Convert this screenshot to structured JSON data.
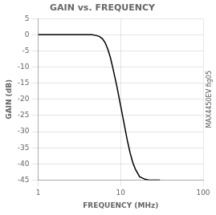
{
  "chart_data": {
    "type": "line",
    "title": "GAIN vs. FREQUENCY",
    "xlabel": "FREQUENCY (MHz)",
    "ylabel": "GAIN (dB)",
    "annotation": "MAX4450EV fig05",
    "x": [
      1,
      1.5,
      2,
      2.5,
      3,
      3.5,
      4,
      4.5,
      5,
      5.5,
      6,
      6.5,
      7,
      7.5,
      8,
      9,
      10,
      11,
      12,
      13,
      14,
      15,
      17,
      20,
      22,
      25,
      28,
      30
    ],
    "values": [
      0.0,
      0.0,
      0.0,
      0.0,
      0.0,
      0.0,
      0.0,
      0.0,
      -0.2,
      -0.5,
      -1.2,
      -2.5,
      -4.5,
      -7.0,
      -10.0,
      -16.0,
      -22.0,
      -27.5,
      -32.5,
      -36.5,
      -39.5,
      -41.5,
      -44.0,
      -44.8,
      -45.0,
      -45.0,
      -45.0,
      -45.0
    ],
    "color": "#000000",
    "log": "x",
    "grid": true,
    "xlim": [
      1,
      100
    ],
    "xticks": [
      1,
      10,
      100
    ],
    "ylim": [
      -45,
      5
    ],
    "yticks": [
      5,
      0,
      -5,
      -10,
      -15,
      -20,
      -25,
      -30,
      -35,
      -40,
      -45
    ]
  }
}
